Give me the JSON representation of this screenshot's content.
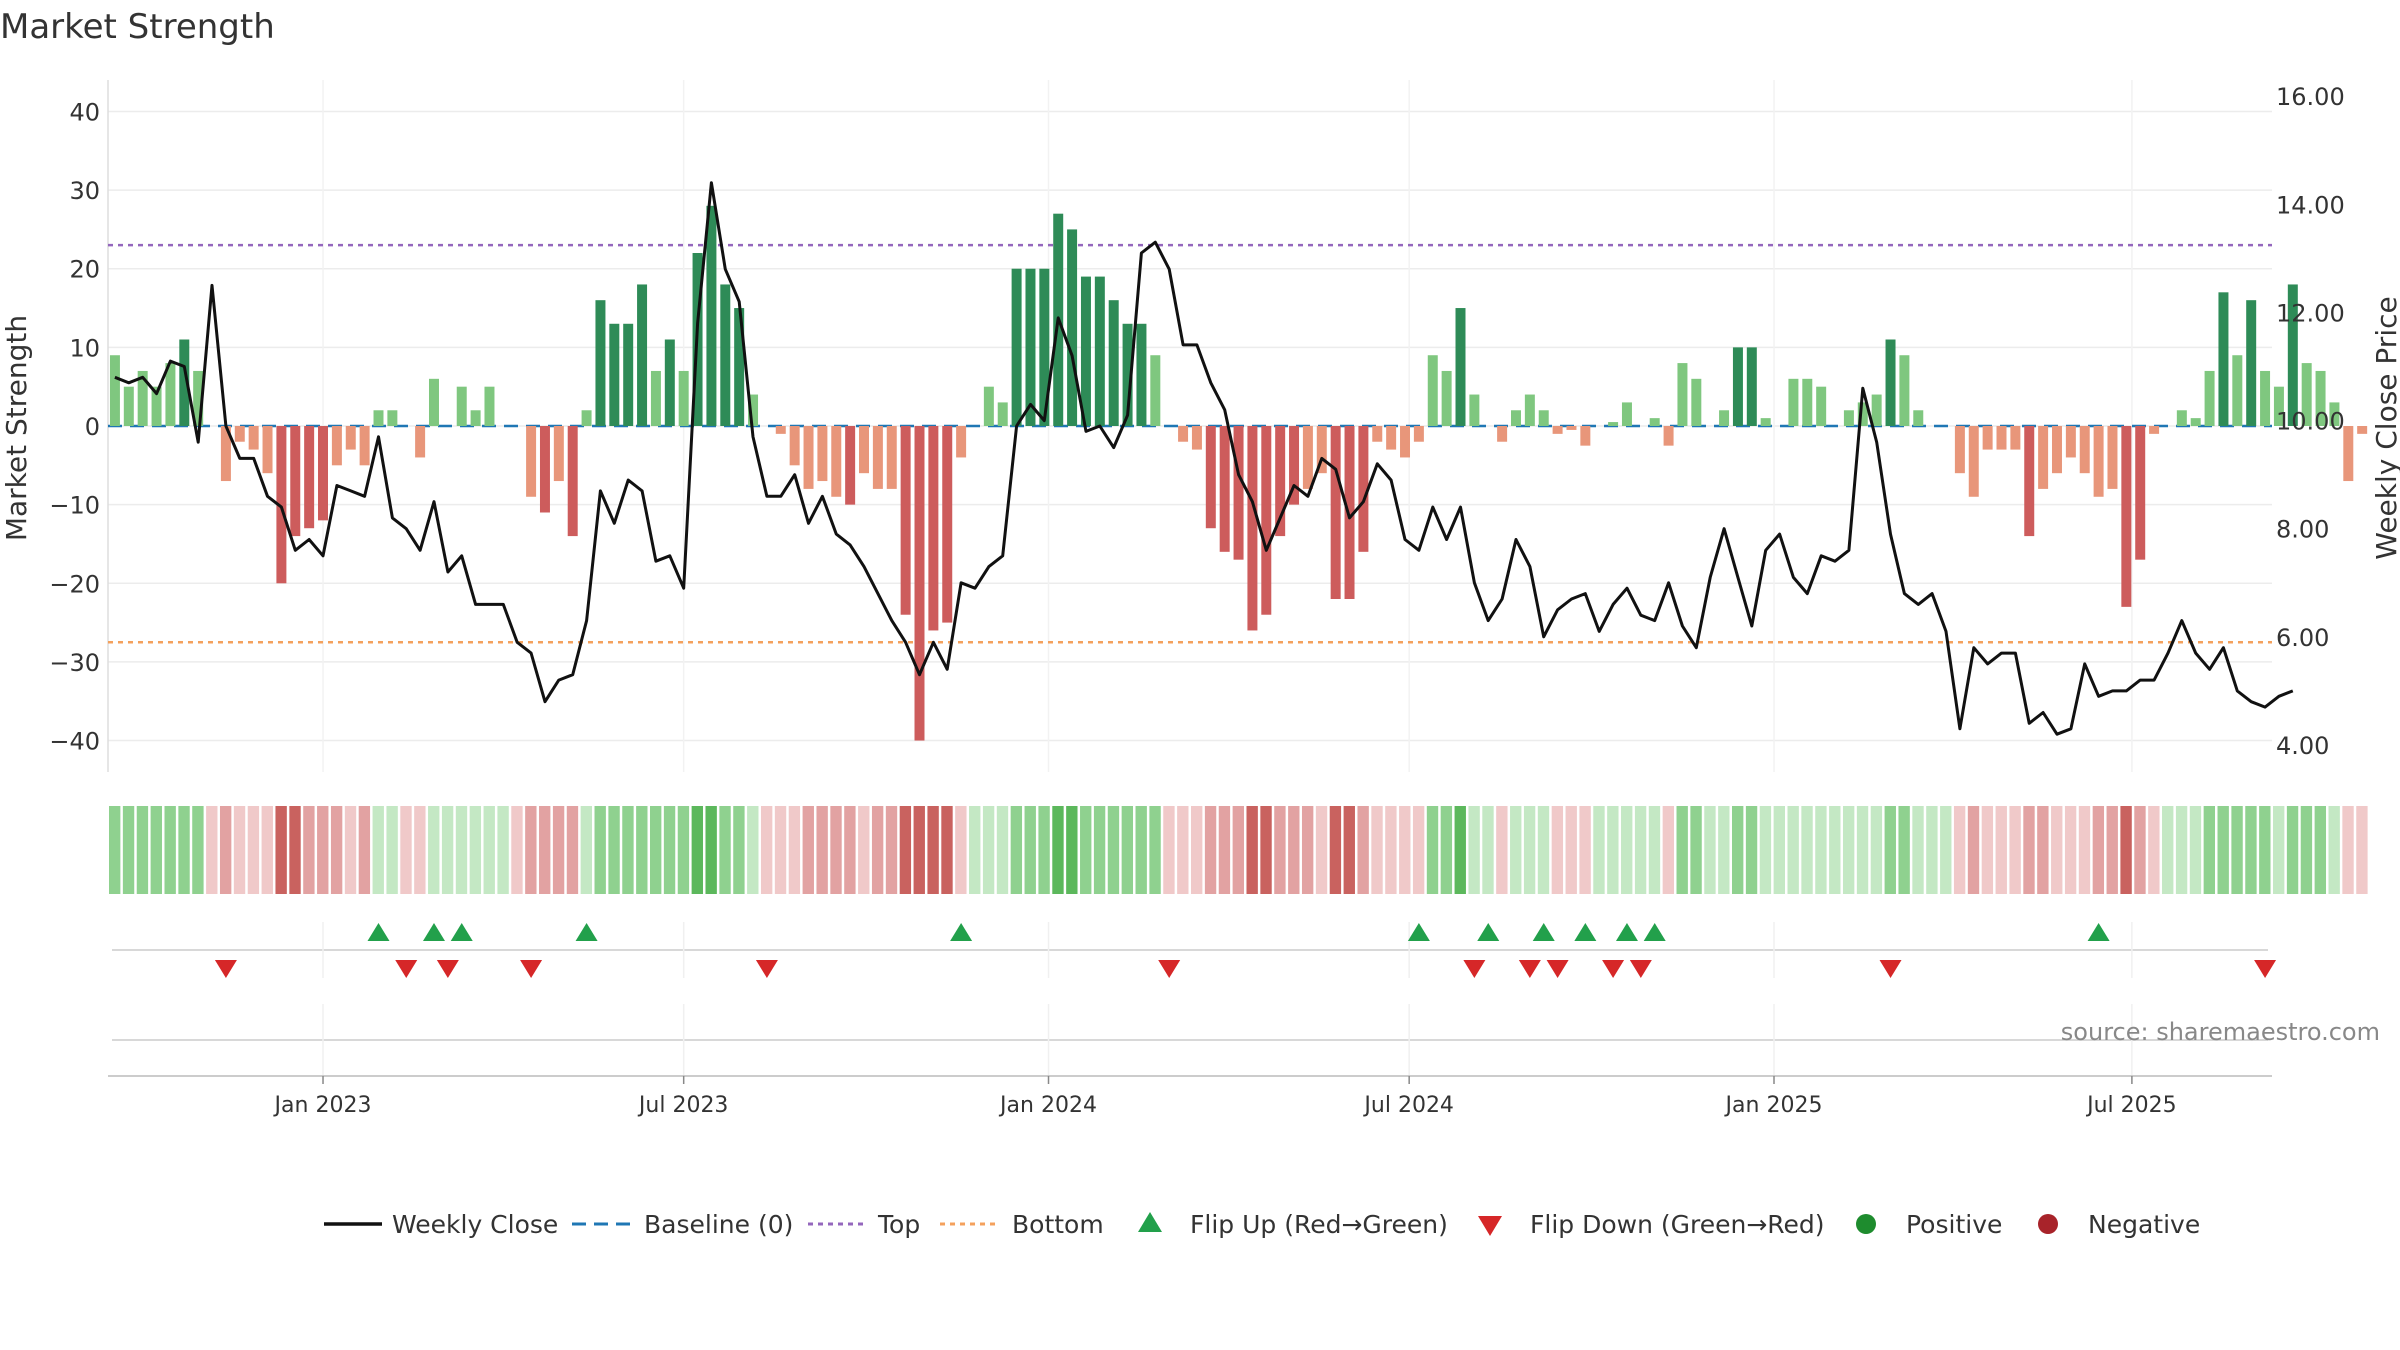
{
  "chart_data": {
    "type": "bar",
    "title": "Market Strength",
    "ylabel": "Market Strength",
    "y2label": "Weekly Close Price",
    "source": "source: sharemaestro.com",
    "ylim": [
      -44,
      44
    ],
    "yticks": [
      40,
      30,
      20,
      10,
      0,
      -10,
      -20,
      -30,
      -40
    ],
    "ytick_labels": [
      "40",
      "30",
      "20",
      "10",
      "0",
      "−10",
      "−20",
      "−30",
      "−40"
    ],
    "y2lim": [
      3.5,
      16.3
    ],
    "y2ticks": [
      16,
      14,
      12,
      10,
      8,
      6,
      4
    ],
    "y2tick_labels": [
      "16.00",
      "14.00",
      "12.00",
      "10.00",
      "8.00",
      "6.00",
      "4.00"
    ],
    "top_level": 23,
    "bottom_level": -27.5,
    "week_span": [
      0,
      156
    ],
    "xticks": [
      {
        "label": "Jan 2023",
        "week": 15
      },
      {
        "label": "Jul 2023",
        "week": 41
      },
      {
        "label": "Jan 2024",
        "week": 67.3
      },
      {
        "label": "Jul 2024",
        "week": 93.3
      },
      {
        "label": "Jan 2025",
        "week": 119.6
      },
      {
        "label": "Jul 2025",
        "week": 145.4
      }
    ],
    "strength": [
      9,
      5,
      7,
      5,
      8,
      11,
      7,
      0,
      -7,
      -2,
      -3,
      -6,
      -20,
      -14,
      -13,
      -12,
      -5,
      -3,
      -5,
      2,
      2,
      0,
      -4,
      6,
      0,
      5,
      2,
      5,
      0,
      0,
      -9,
      -11,
      -7,
      -14,
      2,
      16,
      13,
      13,
      18,
      7,
      11,
      7,
      22,
      28,
      18,
      15,
      4,
      0,
      -1,
      -5,
      -8,
      -7,
      -9,
      -10,
      -6,
      -8,
      -8,
      -24,
      -40,
      -26,
      -25,
      -4,
      0,
      5,
      3,
      20,
      20,
      20,
      27,
      25,
      19,
      19,
      16,
      13,
      13,
      9,
      0,
      -2,
      -3,
      -13,
      -16,
      -17,
      -26,
      -24,
      -14,
      -10,
      -8,
      -6,
      -22,
      -22,
      -16,
      -2,
      -3,
      -4,
      -2,
      9,
      7,
      15,
      4,
      0,
      -2,
      2,
      4,
      2,
      -1,
      -0.5,
      -2.5,
      0,
      0.5,
      3,
      0,
      1,
      -2.5,
      8,
      6,
      0,
      2,
      10,
      10,
      1,
      0,
      6,
      6,
      5,
      0,
      2,
      3,
      4,
      11,
      9,
      2,
      0,
      0,
      -6,
      -9,
      -3,
      -3,
      -3,
      -14,
      -8,
      -6,
      -4,
      -6,
      -9,
      -8,
      -23,
      -17,
      -1,
      0,
      2,
      1,
      7,
      17,
      9,
      16,
      7,
      5,
      18,
      8,
      7,
      3,
      -7,
      -1
    ],
    "weekly_close": [
      10.8,
      10.7,
      10.8,
      10.5,
      11.1,
      11.0,
      9.6,
      12.5,
      9.9,
      9.3,
      9.3,
      8.6,
      8.4,
      7.6,
      7.8,
      7.5,
      8.8,
      8.7,
      8.6,
      9.7,
      8.2,
      8.0,
      7.6,
      8.5,
      7.2,
      7.5,
      6.6,
      6.6,
      6.6,
      5.9,
      5.7,
      4.8,
      5.2,
      5.3,
      6.3,
      8.7,
      8.1,
      8.9,
      8.7,
      7.4,
      7.5,
      6.9,
      11.8,
      14.4,
      12.8,
      12.2,
      9.7,
      8.6,
      8.6,
      9.0,
      8.1,
      8.6,
      7.9,
      7.7,
      7.3,
      6.8,
      6.3,
      5.9,
      5.3,
      5.9,
      5.4,
      7.0,
      6.9,
      7.3,
      7.5,
      9.9,
      10.3,
      10.0,
      11.9,
      11.2,
      9.8,
      9.9,
      9.5,
      10.1,
      13.1,
      13.3,
      12.8,
      11.4,
      11.4,
      10.7,
      10.2,
      9.0,
      8.5,
      7.6,
      8.2,
      8.8,
      8.6,
      9.3,
      9.1,
      8.2,
      8.5,
      9.2,
      8.9,
      7.8,
      7.6,
      8.4,
      7.8,
      8.4,
      7.0,
      6.3,
      6.7,
      7.8,
      7.3,
      6.0,
      6.5,
      6.7,
      6.8,
      6.1,
      6.6,
      6.9,
      6.4,
      6.3,
      7.0,
      6.2,
      5.8,
      7.1,
      8.0,
      7.1,
      6.2,
      7.6,
      7.9,
      7.1,
      6.8,
      7.5,
      7.4,
      7.6,
      10.6,
      9.6,
      7.9,
      6.8,
      6.6,
      6.8,
      6.1,
      4.3,
      5.8,
      5.5,
      5.7,
      5.7,
      4.4,
      4.6,
      4.2,
      4.3,
      5.5,
      4.9,
      5.0,
      5.0,
      5.2,
      5.2,
      5.7,
      6.3,
      5.7,
      5.4,
      5.8,
      5.0,
      4.8,
      4.7,
      4.9,
      5.0
    ],
    "flip_up_weeks": [
      19,
      23,
      25,
      34,
      61,
      94,
      99,
      103,
      106,
      109,
      111,
      143
    ],
    "flip_down_weeks": [
      8,
      21,
      24,
      30,
      47,
      76,
      98,
      102,
      104,
      108,
      110,
      128,
      155
    ],
    "band_regimes": [
      2,
      2,
      2,
      2,
      2,
      2,
      2,
      -1,
      -2,
      -1,
      -1,
      -1,
      -3,
      -3,
      -2,
      -2,
      -2,
      -1,
      -2,
      1,
      1,
      -1,
      -1,
      1,
      1,
      1,
      1,
      1,
      1,
      -1,
      -2,
      -2,
      -2,
      -2,
      1,
      2,
      2,
      2,
      2,
      2,
      2,
      2,
      3,
      3,
      2,
      2,
      1,
      -1,
      -1,
      -1,
      -2,
      -2,
      -2,
      -2,
      -1,
      -2,
      -2,
      -3,
      -3,
      -3,
      -3,
      -1,
      1,
      1,
      1,
      2,
      2,
      2,
      3,
      3,
      2,
      2,
      2,
      2,
      2,
      2,
      -1,
      -1,
      -1,
      -2,
      -2,
      -2,
      -3,
      -3,
      -2,
      -2,
      -2,
      -1,
      -3,
      -3,
      -2,
      -1,
      -1,
      -1,
      -1,
      2,
      2,
      3,
      1,
      1,
      -1,
      1,
      1,
      1,
      -1,
      -1,
      -1,
      1,
      1,
      1,
      1,
      1,
      -1,
      2,
      2,
      1,
      1,
      2,
      2,
      1,
      1,
      1,
      1,
      1,
      1,
      1,
      1,
      1,
      2,
      2,
      1,
      1,
      1,
      -1,
      -2,
      -1,
      -1,
      -1,
      -2,
      -2,
      -1,
      -1,
      -1,
      -2,
      -2,
      -3,
      -2,
      -1,
      1,
      1,
      1,
      2,
      2,
      2,
      2,
      2,
      1,
      2,
      2,
      2,
      1,
      -1,
      -1
    ],
    "series": [
      {
        "name": "Weekly Close",
        "color": "#111111"
      },
      {
        "name": "Baseline (0)",
        "color": "#1f77b4"
      },
      {
        "name": "Top",
        "color": "#9467bd"
      },
      {
        "name": "Bottom",
        "color": "#f4a15d"
      },
      {
        "name": "Flip Up (Red→Green)",
        "color": "#22a04b"
      },
      {
        "name": "Flip Down (Green→Red)",
        "color": "#d62728"
      },
      {
        "name": "Positive",
        "color": "#1e8c2e"
      },
      {
        "name": "Negative",
        "color": "#a8232a"
      }
    ],
    "legend_position": "bottom-center"
  }
}
